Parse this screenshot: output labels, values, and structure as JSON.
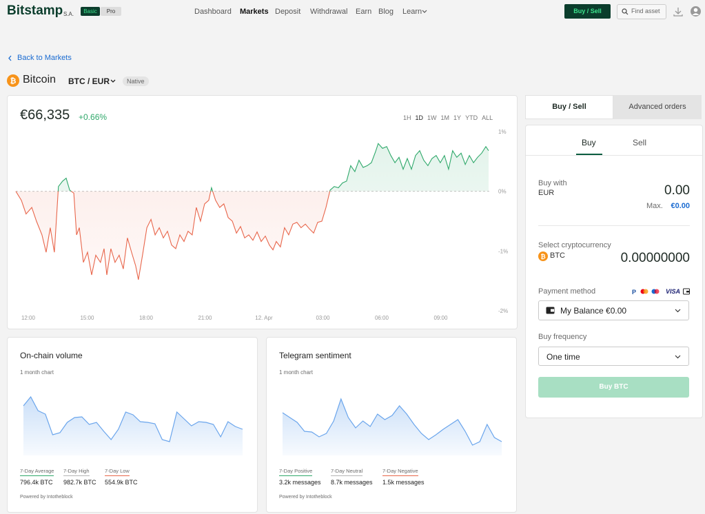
{
  "nav": {
    "logo": "Bitstamp",
    "logo_suffix": "S.A.",
    "badges": [
      "Basic",
      "Pro"
    ],
    "links": [
      "Dashboard",
      "Markets",
      "Deposit",
      "Withdrawal",
      "Earn",
      "Blog",
      "Learn"
    ],
    "cta": "Buy / Sell",
    "search": "Find asset"
  },
  "breadcrumb": "Back to Markets",
  "asset": {
    "name": "Bitcoin",
    "pair": "BTC / EUR",
    "tag": "Native"
  },
  "price_card": {
    "price": "€66,335",
    "change": "+0.66%",
    "ranges": [
      "1H",
      "1D",
      "1W",
      "1M",
      "1Y",
      "YTD",
      "ALL"
    ]
  },
  "chart_data": [
    {
      "type": "line",
      "colors": {
        "up": "#2ea86a",
        "down": "#e8654a"
      },
      "x": [
        -0.63,
        -0.35,
        -0.11,
        0.18,
        0.42,
        0.7,
        0.91,
        1.12,
        1.33,
        1.54,
        1.75,
        1.93,
        2.11,
        2.32,
        2.46,
        2.6,
        2.81,
        3.02,
        3.23,
        3.44,
        3.68,
        3.86,
        4.0,
        4.21,
        4.42,
        4.63,
        4.84,
        5.05,
        5.26,
        5.47,
        5.61,
        5.82,
        6.04,
        6.25,
        6.46,
        6.67,
        6.88,
        7.09,
        7.3,
        7.51,
        7.72,
        7.93,
        8.14,
        8.35,
        8.56,
        8.77,
        8.98,
        9.19,
        9.33,
        9.54,
        9.75,
        9.96,
        10.18,
        10.39,
        10.6,
        10.81,
        11.02,
        11.23,
        11.44,
        11.65,
        11.86,
        12.07,
        12.28,
        12.46,
        12.63,
        12.84,
        13.05,
        13.26,
        13.47,
        13.68,
        13.89,
        14.11,
        14.32,
        14.53,
        14.74,
        14.95,
        15.16,
        15.37,
        15.58,
        15.79,
        16.0,
        16.21,
        16.42,
        16.63,
        16.84,
        17.05,
        17.26,
        17.47,
        17.68,
        17.82,
        18.04,
        18.25,
        18.46,
        18.67,
        18.88,
        19.09,
        19.3,
        19.51,
        19.72,
        19.93,
        20.14,
        20.35,
        20.56,
        20.77,
        20.98,
        21.19,
        21.4,
        21.61,
        21.82,
        22.04,
        22.25,
        22.46,
        22.67,
        22.88,
        23.09,
        23.3,
        23.44
      ],
      "values": [
        0,
        -0.15,
        -0.38,
        -0.27,
        -0.5,
        -0.73,
        -1.02,
        -0.61,
        -1.02,
        0.08,
        0.17,
        0.22,
        0.02,
        -0.03,
        -0.73,
        -0.61,
        -1.19,
        -1.02,
        -1.4,
        -1.07,
        -1.19,
        -0.96,
        -1.4,
        -0.96,
        -1.19,
        -1.07,
        -1.3,
        -0.78,
        -1.02,
        -1.25,
        -1.48,
        -1.07,
        -0.61,
        -0.47,
        -0.73,
        -0.61,
        -0.78,
        -0.67,
        -0.9,
        -0.96,
        -0.73,
        -0.84,
        -0.67,
        -0.73,
        -0.27,
        -0.5,
        -0.21,
        -0.15,
        0.06,
        -0.15,
        -0.27,
        -0.21,
        -0.44,
        -0.5,
        -0.7,
        -0.59,
        -0.78,
        -0.73,
        -0.82,
        -0.68,
        -0.84,
        -0.75,
        -0.9,
        -0.98,
        -0.84,
        -0.93,
        -0.61,
        -0.73,
        -0.55,
        -0.52,
        -0.61,
        -0.55,
        -0.63,
        -0.7,
        -0.52,
        -0.5,
        -0.27,
        0.02,
        0.08,
        0.06,
        0.14,
        0.17,
        0.43,
        0.33,
        0.52,
        0.4,
        0.43,
        0.48,
        0.66,
        0.8,
        0.72,
        0.75,
        0.6,
        0.48,
        0.57,
        0.37,
        0.55,
        0.37,
        0.6,
        0.68,
        0.52,
        0.43,
        0.55,
        0.6,
        0.48,
        0.6,
        0.37,
        0.68,
        0.57,
        0.64,
        0.45,
        0.6,
        0.48,
        0.57,
        0.64,
        0.75,
        0.68
      ],
      "xlim": [
        -0.63,
        23.44
      ],
      "ylim": [
        -2,
        1
      ],
      "xticks": [
        {
          "value": 0,
          "label": "12:00"
        },
        {
          "value": 3,
          "label": "15:00"
        },
        {
          "value": 6,
          "label": "18:00"
        },
        {
          "value": 9,
          "label": "21:00"
        },
        {
          "value": 12,
          "label": "12. Apr"
        },
        {
          "value": 15,
          "label": "03:00"
        },
        {
          "value": 18,
          "label": "06:00"
        },
        {
          "value": 21,
          "label": "09:00"
        }
      ],
      "yticks": [
        {
          "value": 1,
          "label": "1%"
        },
        {
          "value": 0,
          "label": "0%"
        },
        {
          "value": -1,
          "label": "-1%"
        },
        {
          "value": -2,
          "label": "-2%"
        }
      ]
    },
    {
      "type": "area",
      "title": "On-chain volume",
      "subtitle": "1 month chart",
      "color": "#6aa5ec",
      "ylim": [
        0,
        100
      ],
      "values": [
        72,
        85,
        65,
        60,
        30,
        33,
        48,
        55,
        56,
        45,
        48,
        35,
        23,
        38,
        63,
        59,
        49,
        48,
        46,
        23,
        20,
        63,
        53,
        43,
        49,
        48,
        45,
        27,
        49,
        42,
        38
      ]
    },
    {
      "type": "area",
      "title": "Telegram sentiment",
      "subtitle": "1 month chart",
      "color": "#6aa5ec",
      "ylim": [
        0,
        100
      ],
      "values": [
        62,
        55,
        48,
        35,
        34,
        27,
        32,
        50,
        82,
        55,
        40,
        50,
        42,
        60,
        52,
        58,
        72,
        60,
        45,
        32,
        23,
        30,
        38,
        45,
        52,
        35,
        15,
        20,
        45,
        26,
        20
      ]
    }
  ],
  "volume_card": {
    "stats": [
      {
        "label": "7-Day Average",
        "value": "796.4k BTC",
        "color": "#2ea86a"
      },
      {
        "label": "7-Day High",
        "value": "982.7k BTC",
        "color": "#b5b5b5"
      },
      {
        "label": "7-Day Low",
        "value": "554.9k BTC",
        "color": "#e8654a"
      }
    ],
    "footer": "Powered by Intotheblock"
  },
  "sentiment_card": {
    "stats": [
      {
        "label": "7-Day Positive",
        "value": "3.2k messages",
        "color": "#2ea86a"
      },
      {
        "label": "7-Day Neutral",
        "value": "8.7k messages",
        "color": "#b5b5b5"
      },
      {
        "label": "7-Day Negative",
        "value": "1.5k messages",
        "color": "#e8654a"
      }
    ],
    "footer": "Powered by Intotheblock"
  },
  "trade_panel": {
    "tabs": [
      "Buy / Sell",
      "Advanced orders"
    ],
    "sides": [
      "Buy",
      "Sell"
    ],
    "buy_with_label": "Buy with",
    "buy_with_currency": "EUR",
    "amount": "0.00",
    "max_label": "Max.",
    "max_value": "€0.00",
    "crypto_label": "Select cryptocurrency",
    "crypto": "BTC",
    "crypto_amount": "0.00000000",
    "payment_label": "Payment method",
    "payment_card": "VISA",
    "payment_method": "My Balance €0.00",
    "frequency_label": "Buy frequency",
    "frequency": "One time",
    "submit": "Buy BTC"
  }
}
